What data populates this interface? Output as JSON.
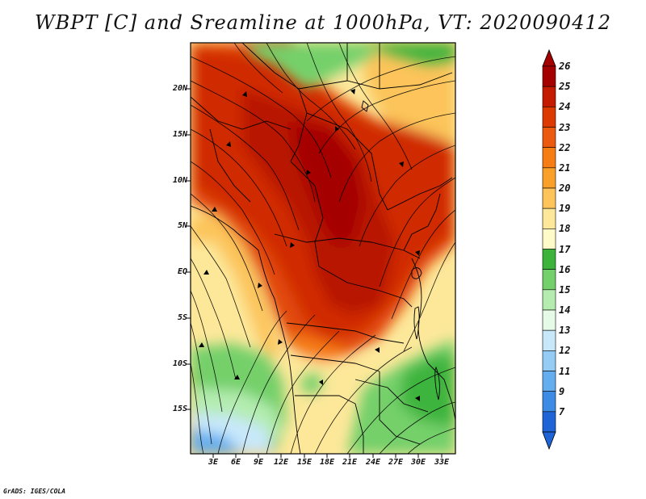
{
  "title": "WBPT [C] and Sreamline at 1000hPa, VT: 2020090412",
  "credit": "GrADS: IGES/COLA",
  "axes": {
    "lat_labels": [
      "20N",
      "15N",
      "10N",
      "5N",
      "EQ",
      "5S",
      "10S",
      "15S"
    ],
    "lon_labels": [
      "3E",
      "6E",
      "9E",
      "12E",
      "15E",
      "18E",
      "21E",
      "24E",
      "27E",
      "30E",
      "33E"
    ]
  },
  "colorbar": {
    "labels": [
      "26",
      "25",
      "24",
      "23",
      "22",
      "21",
      "20",
      "19",
      "18",
      "17",
      "16",
      "15",
      "14",
      "13",
      "12",
      "11",
      "9",
      "7"
    ],
    "colors": [
      "#a50000",
      "#c41a00",
      "#dc3a00",
      "#ec5a10",
      "#f67d14",
      "#f9a02a",
      "#fcc45a",
      "#fde89a",
      "#fffbc8",
      "#3cb43c",
      "#74d06a",
      "#b4ecb0",
      "#e6fae8",
      "#c8e8fa",
      "#94ccf6",
      "#64aef0",
      "#3c8ce6",
      "#1e64d6"
    ]
  },
  "legend_icons": {
    "top": "up-triangle",
    "bottom": "down-triangle"
  }
}
